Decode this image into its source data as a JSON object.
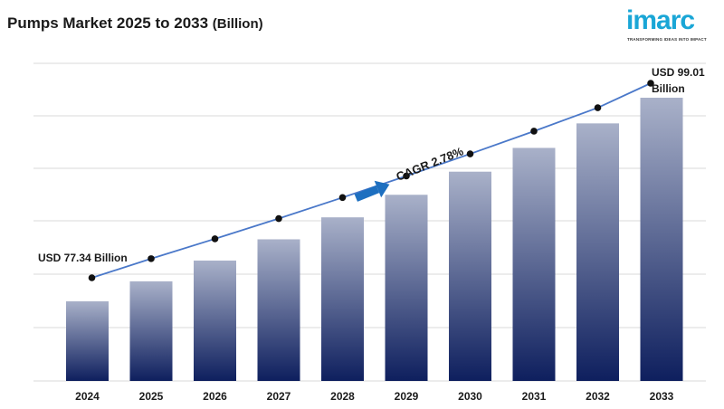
{
  "title": {
    "main": "Pumps Market 2025 to 2033",
    "unit": "(Billion)"
  },
  "logo": {
    "word": "imarc",
    "tagline": "TRANSFORMING IDEAS INTO IMPACT"
  },
  "chart_data": {
    "type": "bar",
    "title": "Pumps Market 2025 to 2033 (Billion)",
    "categories": [
      "2024",
      "2025",
      "2026",
      "2027",
      "2028",
      "2029",
      "2030",
      "2031",
      "2032",
      "2033"
    ],
    "values": [
      77.34,
      79.47,
      81.68,
      83.94,
      86.28,
      88.68,
      91.14,
      93.67,
      96.28,
      99.01
    ],
    "annotations": {
      "start_label": "USD 77.34 Billion",
      "end_label_line1": "USD 99.01",
      "end_label_line2": "Billion",
      "cagr": "CAGR 2.78%"
    },
    "grid": true,
    "legend": "none",
    "colors": {
      "bar_top": "#a9b1c9",
      "bar_bottom": "#0e1f5e",
      "line": "#4a78c9",
      "marker": "#111111",
      "arrow": "#1d6fc0"
    }
  }
}
